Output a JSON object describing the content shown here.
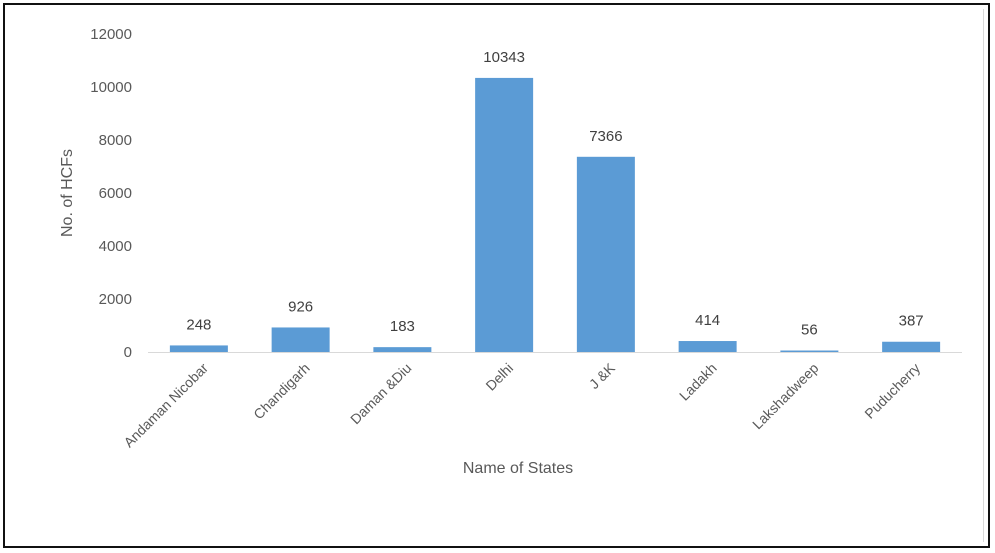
{
  "chart_data": {
    "type": "bar",
    "title": "",
    "xlabel": "Name of States",
    "ylabel": "No. of HCFs",
    "categories": [
      "Andaman Nicobar",
      "Chandigarh",
      "Daman &Diu",
      "Delhi",
      "J &K",
      "Ladakh",
      "Lakshadweep",
      "Puducherry"
    ],
    "values": [
      248,
      926,
      183,
      10343,
      7366,
      414,
      56,
      387
    ],
    "data_labels": [
      "248",
      "926",
      "183",
      "10343",
      "7366",
      "414",
      "56",
      "387"
    ],
    "ylim": [
      0,
      12000
    ],
    "yticks": [
      "0",
      "2000",
      "4000",
      "6000",
      "8000",
      "10000",
      "12000"
    ],
    "grid": false,
    "legend": "none",
    "colors": {
      "bar": "#5b9bd5",
      "axis": "#d9d9d9"
    }
  }
}
